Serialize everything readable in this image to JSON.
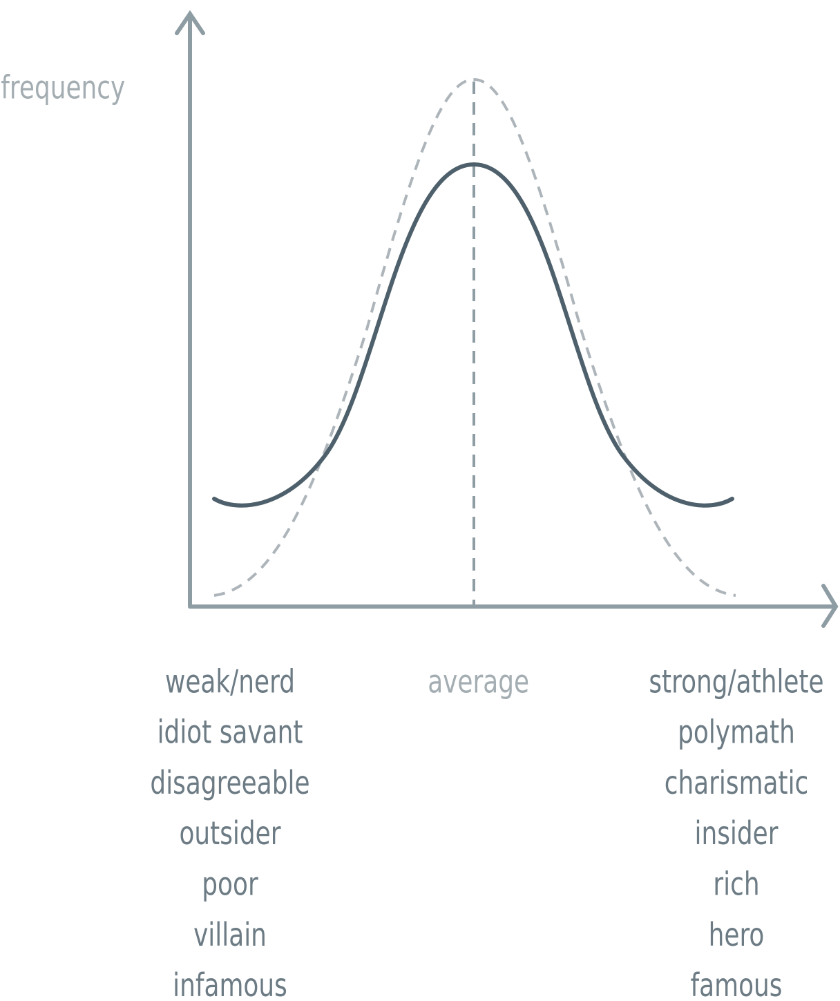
{
  "y_axis_label": "frequency",
  "center_label": "average",
  "left_labels": [
    "weak/nerd",
    "idiot savant",
    "disagreeable",
    "outsider",
    "poor",
    "villain",
    "infamous"
  ],
  "right_labels": [
    "strong/athlete",
    "polymath",
    "charismatic",
    "insider",
    "rich",
    "hero",
    "famous"
  ]
}
